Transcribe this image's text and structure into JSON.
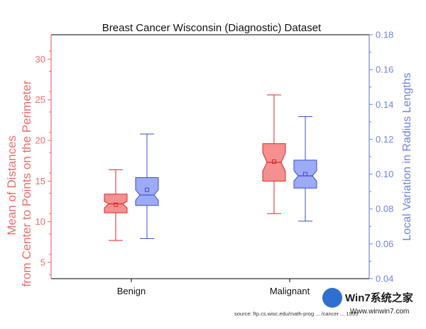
{
  "colors": {
    "left_axis": "#f06b6b",
    "right_axis": "#6f83e6",
    "benign_fill": "#f06b6b",
    "benign_stroke": "#e32626",
    "malignant_fill": "#7c8ef0",
    "malignant_stroke": "#3a4fd6",
    "frame": "#000000"
  },
  "watermark": {
    "logo_text": "Win7系统之家",
    "url_text": "Www.winwin7.com"
  },
  "chart_data": {
    "type": "box",
    "title": "Breast Cancer Wisconsin (Diagnostic) Dataset",
    "categories": [
      "Benign",
      "Malignant"
    ],
    "y_left": {
      "label_lines": [
        "Mean of Distances",
        "from Center to Points on the Perimeter"
      ],
      "lim": [
        3,
        33
      ],
      "ticks": [
        5,
        10,
        15,
        20,
        25,
        30
      ],
      "tick_labels": [
        "5",
        "10",
        "15",
        "20",
        "25",
        "30"
      ]
    },
    "y_right": {
      "label": "Local Variation in Radius Lengths",
      "lim": [
        0.04,
        0.18
      ],
      "ticks": [
        0.04,
        0.06,
        0.08,
        0.1,
        0.12,
        0.14,
        0.16,
        0.18
      ],
      "tick_labels": [
        "0.04",
        "0.06",
        "0.08",
        "0.10",
        "0.12",
        "0.14",
        "0.16",
        "0.18"
      ]
    },
    "series": [
      {
        "name": "Mean of Distances from Center to Points on the Perimeter",
        "axis": "left",
        "boxes": [
          {
            "category": "Benign",
            "whisker_low": 7.7,
            "q1": 11.1,
            "median": 12.2,
            "q3": 13.4,
            "whisker_high": 16.4,
            "mean": 12.1,
            "notch_low": 11.7,
            "notch_high": 12.5
          },
          {
            "category": "Malignant",
            "whisker_low": 11.0,
            "q1": 15.0,
            "median": 17.3,
            "q3": 19.6,
            "whisker_high": 25.6,
            "mean": 17.4,
            "notch_low": 16.2,
            "notch_high": 18.5
          }
        ]
      },
      {
        "name": "Local Variation in Radius Lengths",
        "axis": "right",
        "boxes": [
          {
            "category": "Benign",
            "whisker_low": 0.063,
            "q1": 0.082,
            "median": 0.088,
            "q3": 0.098,
            "whisker_high": 0.123,
            "mean": 0.091,
            "notch_low": 0.085,
            "notch_high": 0.091
          },
          {
            "category": "Malignant",
            "whisker_low": 0.073,
            "q1": 0.092,
            "median": 0.099,
            "q3": 0.108,
            "whisker_high": 0.133,
            "mean": 0.1,
            "notch_low": 0.096,
            "notch_high": 0.102
          }
        ]
      }
    ],
    "source_note": "source: ftp.cs.wisc.edu/math-prog ... /cancer ... 1995",
    "grid": false,
    "legend": "none"
  }
}
